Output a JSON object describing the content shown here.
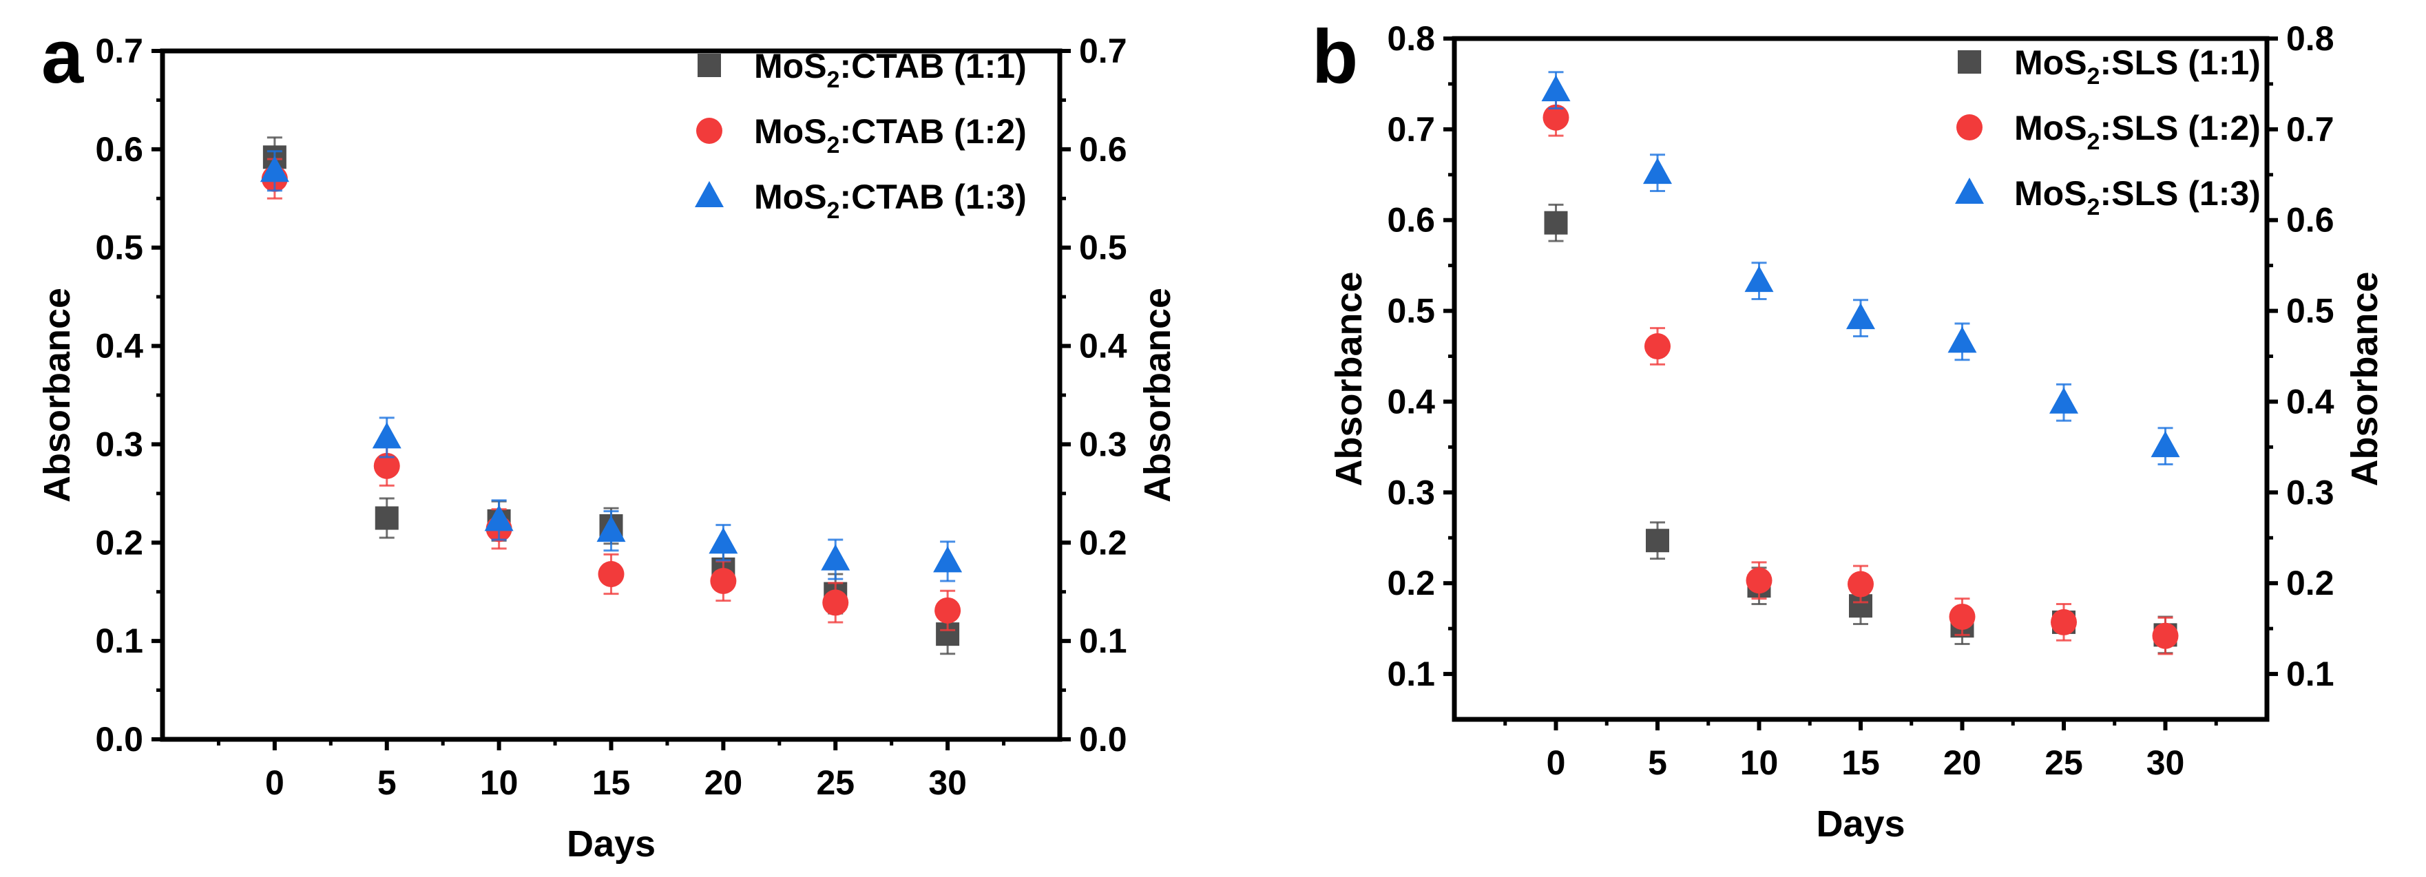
{
  "chart_data": [
    {
      "type": "scatter",
      "panel_label": "a",
      "xlabel": "Days",
      "ylabel": "Absorbance",
      "ylabel_right": "Absorbance",
      "x": [
        0,
        5,
        10,
        15,
        20,
        25,
        30
      ],
      "xticks": [
        "0",
        "5",
        "10",
        "15",
        "20",
        "25",
        "30"
      ],
      "xlim": [
        -5,
        35
      ],
      "ylim": [
        0,
        0.7
      ],
      "yticks": [
        "0.0",
        "0.1",
        "0.2",
        "0.3",
        "0.4",
        "0.5",
        "0.6",
        "0.7"
      ],
      "ytick_values": [
        0,
        0.1,
        0.2,
        0.3,
        0.4,
        0.5,
        0.6,
        0.7
      ],
      "legend_position": "top-right",
      "series": [
        {
          "name_main": "MoS",
          "name_sub": "2",
          "name_rest": ":CTAB (1:1)",
          "marker": "square",
          "color": "#4d4d4d",
          "values": [
            0.592,
            0.225,
            0.222,
            0.217,
            0.173,
            0.148,
            0.107
          ],
          "errors": [
            0.02,
            0.02,
            0.02,
            0.018,
            0.02,
            0.02,
            0.02
          ]
        },
        {
          "name_main": "MoS",
          "name_sub": "2",
          "name_rest": ":CTAB (1:2)",
          "marker": "circle",
          "color": "#f23b3b",
          "values": [
            0.57,
            0.278,
            0.214,
            0.168,
            0.161,
            0.139,
            0.131
          ],
          "errors": [
            0.02,
            0.02,
            0.02,
            0.02,
            0.02,
            0.02,
            0.02
          ]
        },
        {
          "name_main": "MoS",
          "name_sub": "2",
          "name_rest": ":CTAB (1:3)",
          "marker": "triangle",
          "color": "#1a73e0",
          "values": [
            0.578,
            0.307,
            0.223,
            0.212,
            0.2,
            0.183,
            0.181
          ],
          "errors": [
            0.02,
            0.02,
            0.02,
            0.02,
            0.018,
            0.02,
            0.02
          ]
        }
      ]
    },
    {
      "type": "scatter",
      "panel_label": "b",
      "xlabel": "Days",
      "ylabel": "Absorbance",
      "ylabel_right": "Absorbance",
      "x": [
        0,
        5,
        10,
        15,
        20,
        25,
        30
      ],
      "xticks": [
        "0",
        "5",
        "10",
        "15",
        "20",
        "25",
        "30"
      ],
      "xlim": [
        -5,
        35
      ],
      "ylim": [
        0.05,
        0.8
      ],
      "yticks": [
        "0.1",
        "0.2",
        "0.3",
        "0.4",
        "0.5",
        "0.6",
        "0.7",
        "0.8"
      ],
      "ytick_values": [
        0.1,
        0.2,
        0.3,
        0.4,
        0.5,
        0.6,
        0.7,
        0.8
      ],
      "legend_position": "top-right",
      "series": [
        {
          "name_main": "MoS",
          "name_sub": "2",
          "name_rest": ":SLS (1:1)",
          "marker": "square",
          "color": "#4d4d4d",
          "values": [
            0.597,
            0.247,
            0.197,
            0.175,
            0.153,
            0.157,
            0.143
          ],
          "errors": [
            0.02,
            0.02,
            0.02,
            0.02,
            0.02,
            0.01,
            0.02
          ]
        },
        {
          "name_main": "MoS",
          "name_sub": "2",
          "name_rest": ":SLS (1:2)",
          "marker": "circle",
          "color": "#f23b3b",
          "values": [
            0.713,
            0.461,
            0.203,
            0.199,
            0.163,
            0.157,
            0.142
          ],
          "errors": [
            0.02,
            0.02,
            0.02,
            0.02,
            0.02,
            0.02,
            0.02
          ]
        },
        {
          "name_main": "MoS",
          "name_sub": "2",
          "name_rest": ":SLS (1:3)",
          "marker": "triangle",
          "color": "#1a73e0",
          "values": [
            0.743,
            0.652,
            0.533,
            0.492,
            0.466,
            0.399,
            0.351
          ],
          "errors": [
            0.02,
            0.02,
            0.02,
            0.02,
            0.02,
            0.02,
            0.02
          ]
        }
      ]
    }
  ]
}
